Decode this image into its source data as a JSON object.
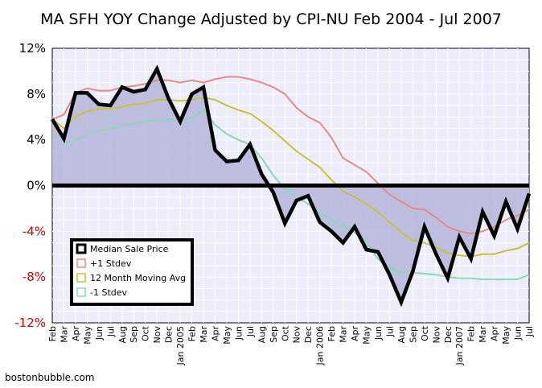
{
  "chart_data": {
    "type": "line",
    "title": "MA SFH YOY Change Adjusted by CPI-NU Feb 2004 - Jul 2007",
    "source": "bostonbubble.com",
    "x_tick_labels": [
      "Feb",
      "Mar",
      "Apr",
      "May",
      "Jun",
      "Jul",
      "Aug",
      "Sep",
      "Oct",
      "Nov",
      "Dec",
      "Jan 2005",
      "Feb",
      "Mar",
      "Apr",
      "May",
      "Jun",
      "Jul",
      "Aug",
      "Sep",
      "Oct",
      "Nov",
      "Dec",
      "Jan 2006",
      "Feb",
      "Mar",
      "Apr",
      "May",
      "Jun",
      "Jul",
      "Aug",
      "Sep",
      "Oct",
      "Nov",
      "Dec",
      "Jan 2007",
      "Feb",
      "Mar",
      "Apr",
      "May",
      "Jun",
      "Jul"
    ],
    "y_tick_labels": [
      "12%",
      "8%",
      "4%",
      "0%",
      "-4%",
      "-8%",
      "-12%"
    ],
    "y_ticks": [
      12,
      8,
      4,
      0,
      -4,
      -8,
      -12
    ],
    "ylim": [
      -12,
      12
    ],
    "grid": true,
    "legend_position": "bottom-left",
    "colors": {
      "median": "#000000",
      "plus_stdev": "#e88a8a",
      "moving_avg": "#c8c040",
      "minus_stdev": "#8ad8b8",
      "fill": "#b8b8dc",
      "plot_bg": "#ececfa",
      "grid": "#ffffff",
      "negative_tick": "#cc0000"
    },
    "series": [
      {
        "key": "median",
        "name": "Median Sale Price",
        "values": [
          5.8,
          4.1,
          8.1,
          8.1,
          7.1,
          7.0,
          8.6,
          8.2,
          8.4,
          10.2,
          7.6,
          5.6,
          8.0,
          8.6,
          3.1,
          2.1,
          2.2,
          3.6,
          1.0,
          -0.6,
          -3.3,
          -1.3,
          -0.9,
          -3.2,
          -4.0,
          -5.0,
          -3.6,
          -5.6,
          -5.8,
          -7.8,
          -10.2,
          -7.5,
          -3.6,
          -6.0,
          -8.1,
          -4.5,
          -6.4,
          -2.3,
          -4.4,
          -1.4,
          -3.8,
          -0.7
        ]
      },
      {
        "key": "plus_stdev",
        "name": "+1 Stdev",
        "values": [
          5.8,
          6.2,
          8.1,
          8.5,
          8.3,
          8.3,
          8.6,
          8.7,
          8.9,
          9.2,
          9.2,
          9.0,
          9.2,
          9.0,
          9.3,
          9.5,
          9.5,
          9.3,
          9.0,
          8.6,
          8.0,
          6.8,
          6.0,
          5.5,
          4.2,
          2.4,
          1.8,
          1.2,
          0.2,
          -0.8,
          -1.4,
          -2.0,
          -2.1,
          -2.8,
          -3.6,
          -4.0,
          -4.2,
          -4.0,
          -3.6,
          -3.0,
          -2.6,
          -2.1
        ]
      },
      {
        "key": "moving_avg",
        "name": "12 Month Moving Avg",
        "values": [
          5.8,
          5.0,
          6.0,
          6.5,
          6.7,
          6.7,
          6.9,
          7.1,
          7.2,
          7.5,
          7.5,
          7.4,
          7.5,
          7.7,
          7.5,
          7.0,
          6.6,
          6.3,
          5.6,
          4.8,
          3.9,
          3.0,
          2.3,
          1.6,
          0.5,
          -0.5,
          -1.0,
          -1.6,
          -2.3,
          -3.2,
          -4.1,
          -4.8,
          -5.0,
          -5.4,
          -5.9,
          -6.1,
          -6.2,
          -6.0,
          -6.0,
          -5.7,
          -5.5,
          -5.0
        ]
      },
      {
        "key": "minus_stdev",
        "name": "-1 Stdev",
        "values": [
          5.8,
          3.7,
          3.9,
          4.5,
          4.8,
          5.0,
          5.2,
          5.4,
          5.6,
          5.7,
          5.8,
          5.8,
          5.9,
          6.6,
          5.3,
          4.5,
          4.0,
          3.6,
          2.4,
          0.9,
          -0.3,
          -1.0,
          -1.6,
          -2.4,
          -3.0,
          -3.5,
          -4.1,
          -5.0,
          -6.4,
          -7.2,
          -7.6,
          -7.6,
          -7.7,
          -7.8,
          -8.0,
          -8.1,
          -8.1,
          -8.2,
          -8.2,
          -8.2,
          -8.2,
          -7.8
        ]
      }
    ]
  }
}
